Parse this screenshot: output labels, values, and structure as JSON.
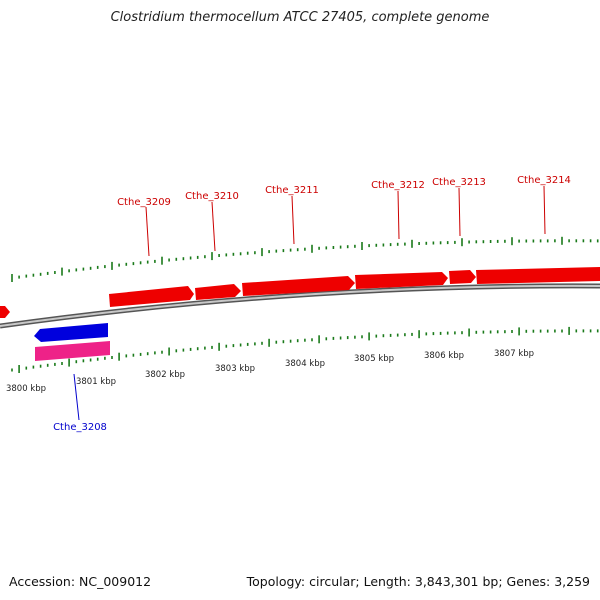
{
  "title": "Clostridium thermocellum ATCC 27405, complete genome",
  "footer": {
    "accession": "Accession: NC_009012",
    "topology": "Topology: circular; Length: 3,843,301 bp; Genes: 3,259"
  },
  "colors": {
    "forward_gene": "#ee0000",
    "reverse_gene": "#0000dd",
    "reverse_rna": "#ee2288",
    "forward_label": "#cc0000",
    "reverse_label": "#0000cc",
    "tick": "#1a7a1a",
    "backbone": "#808080"
  },
  "scale_labels": [
    "3800 kbp",
    "3801 kbp",
    "3802 kbp",
    "3803 kbp",
    "3804 kbp",
    "3805 kbp",
    "3806 kbp",
    "3807 kbp"
  ],
  "genes": [
    {
      "locus": "Cthe_3208",
      "strand": "reverse",
      "labeled": true
    },
    {
      "locus": "Cthe_3209",
      "strand": "forward",
      "labeled": true
    },
    {
      "locus": "Cthe_3210",
      "strand": "forward",
      "labeled": true
    },
    {
      "locus": "Cthe_3211",
      "strand": "forward",
      "labeled": true
    },
    {
      "locus": "Cthe_3212",
      "strand": "forward",
      "labeled": true
    },
    {
      "locus": "Cthe_3213",
      "strand": "forward",
      "labeled": true
    },
    {
      "locus": "Cthe_3214",
      "strand": "forward",
      "labeled": true
    }
  ]
}
